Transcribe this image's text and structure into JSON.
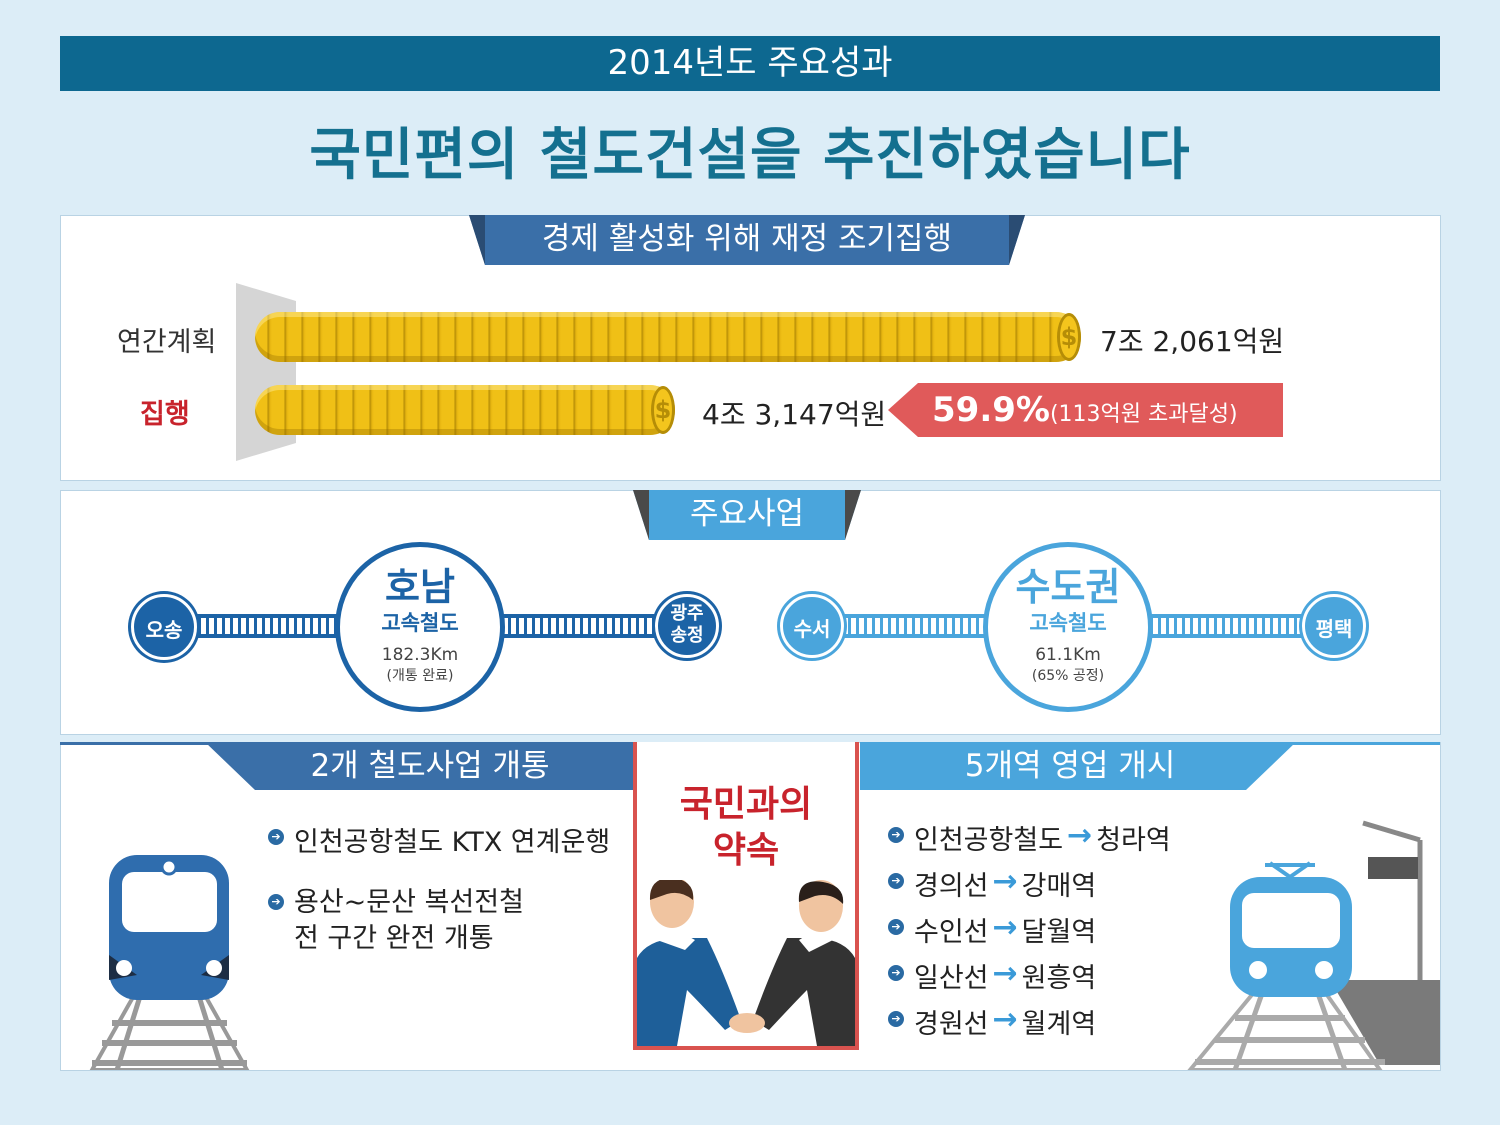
{
  "header": {
    "banner": "2014년도 주요성과",
    "headline": "국민편의 철도건설을 추진하였습니다"
  },
  "budget": {
    "title": "경제 활성화 위해 재정 조기집행",
    "plan_label": "연간계획",
    "plan_value": "7조 2,061억원",
    "exec_label": "집행",
    "exec_value": "4조 3,147억원",
    "exec_ratio": 0.599,
    "rate_big": "59.9%",
    "rate_small": "(113억원 초과달성)",
    "coin_symbol": "$",
    "colors": {
      "exec_label": "#c8232c",
      "rate_bg": "#e05a5a",
      "coin": "#f0c016"
    }
  },
  "projects": {
    "title": "주요사업",
    "honam": {
      "start": "오송",
      "end": "광주\n송정",
      "name": "호남",
      "type": "고속철도",
      "length": "182.3Km",
      "status": "(개통 완료)",
      "color": "#1c63a6"
    },
    "capital": {
      "start": "수서",
      "end": "평택",
      "name": "수도권",
      "type": "고속철도",
      "length": "61.1Km",
      "status": "(65% 공정)",
      "color": "#4aa5dc"
    }
  },
  "opening": {
    "title": "2개 철도사업 개통",
    "items": [
      "인천공항철도 KTX 연계운행",
      "용산~문산 복선전철\n전 구간 완전 개통"
    ]
  },
  "promise": {
    "title": "국민과의\n약속"
  },
  "stations": {
    "title": "5개역 영업 개시",
    "items": [
      {
        "line": "인천공항철도",
        "station": "청라역"
      },
      {
        "line": "경의선",
        "station": "강매역"
      },
      {
        "line": "수인선",
        "station": "달월역"
      },
      {
        "line": "일산선",
        "station": "원흥역"
      },
      {
        "line": "경원선",
        "station": "월계역"
      }
    ]
  },
  "icons": [
    "train-front-icon",
    "handshake-icon",
    "station-train-icon",
    "coin-stack-icon",
    "arrow-right-icon",
    "bullet-arrow-icon"
  ]
}
